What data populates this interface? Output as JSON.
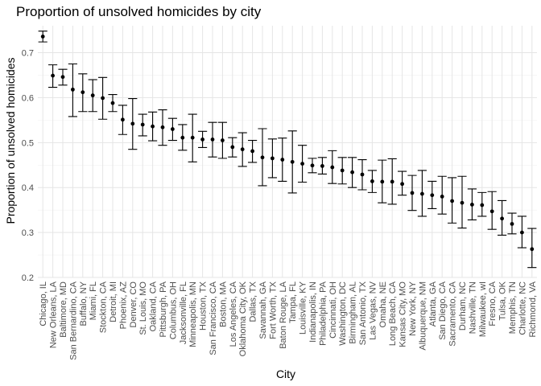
{
  "chart_data": {
    "type": "scatter",
    "title": "Proportion of unsolved homicides by city",
    "xlabel": "City",
    "ylabel": "Proportion of unsolved homicides",
    "ylim": [
      0.2,
      0.76
    ],
    "yticks": [
      0.2,
      0.3,
      0.4,
      0.5,
      0.6,
      0.7
    ],
    "ytick_labels": [
      "0.2",
      "0.3",
      "0.4",
      "0.5",
      "0.6",
      "0.7"
    ],
    "grid": true,
    "categories": [
      "Chicago, IL",
      "New Orleans, LA",
      "Baltimore, MD",
      "San Bernardino, CA",
      "Buffalo, NY",
      "Miami, FL",
      "Stockton, CA",
      "Detroit, MI",
      "Phoenix, AZ",
      "Denver, CO",
      "St. Louis, MO",
      "Oakland, CA",
      "Pittsburgh, PA",
      "Columbus, OH",
      "Jacksonville, FL",
      "Minneapolis, MN",
      "Houston, TX",
      "San Francisco, CA",
      "Boston, MA",
      "Los Angeles, CA",
      "Oklahoma City, OK",
      "Dallas, TX",
      "Savannah, GA",
      "Fort Worth, TX",
      "Baton Rouge, LA",
      "Tampa, FL",
      "Louisville, KY",
      "Indianapolis, IN",
      "Philadelphia, PA",
      "Cincinnati, OH",
      "Washington, DC",
      "Birmingham, AL",
      "San Antonio, TX",
      "Las Vegas, NV",
      "Omaha, NE",
      "Long Beach, CA",
      "Kansas City, MO",
      "New York, NY",
      "Albuquerque, NM",
      "Atlanta, GA",
      "San Diego, CA",
      "Sacramento, CA",
      "Durham, NC",
      "Nashville, TN",
      "Milwaukee, wI",
      "Fresno, CA",
      "Tulsa, OK",
      "Memphis, TN",
      "Charlotte, NC",
      "Richmond, VA"
    ],
    "estimate": [
      0.736,
      0.649,
      0.646,
      0.618,
      0.612,
      0.605,
      0.599,
      0.588,
      0.551,
      0.542,
      0.54,
      0.536,
      0.534,
      0.53,
      0.511,
      0.511,
      0.507,
      0.507,
      0.505,
      0.49,
      0.485,
      0.481,
      0.467,
      0.465,
      0.462,
      0.457,
      0.453,
      0.449,
      0.448,
      0.445,
      0.438,
      0.434,
      0.429,
      0.414,
      0.413,
      0.413,
      0.408,
      0.388,
      0.386,
      0.383,
      0.38,
      0.37,
      0.366,
      0.362,
      0.361,
      0.347,
      0.331,
      0.319,
      0.3,
      0.263
    ],
    "ci_low": [
      0.724,
      0.623,
      0.628,
      0.558,
      0.569,
      0.569,
      0.552,
      0.569,
      0.518,
      0.485,
      0.515,
      0.504,
      0.494,
      0.505,
      0.483,
      0.457,
      0.489,
      0.468,
      0.465,
      0.468,
      0.447,
      0.456,
      0.404,
      0.422,
      0.414,
      0.388,
      0.412,
      0.433,
      0.43,
      0.409,
      0.408,
      0.4,
      0.395,
      0.389,
      0.366,
      0.363,
      0.383,
      0.349,
      0.336,
      0.353,
      0.341,
      0.321,
      0.31,
      0.328,
      0.336,
      0.307,
      0.294,
      0.297,
      0.266,
      0.222
    ],
    "ci_high": [
      0.748,
      0.673,
      0.663,
      0.675,
      0.653,
      0.64,
      0.645,
      0.607,
      0.583,
      0.598,
      0.563,
      0.568,
      0.573,
      0.554,
      0.54,
      0.563,
      0.525,
      0.545,
      0.545,
      0.511,
      0.522,
      0.505,
      0.531,
      0.508,
      0.51,
      0.526,
      0.494,
      0.465,
      0.467,
      0.482,
      0.467,
      0.467,
      0.462,
      0.438,
      0.461,
      0.464,
      0.436,
      0.427,
      0.438,
      0.414,
      0.425,
      0.422,
      0.425,
      0.397,
      0.389,
      0.391,
      0.371,
      0.343,
      0.336,
      0.309
    ]
  }
}
